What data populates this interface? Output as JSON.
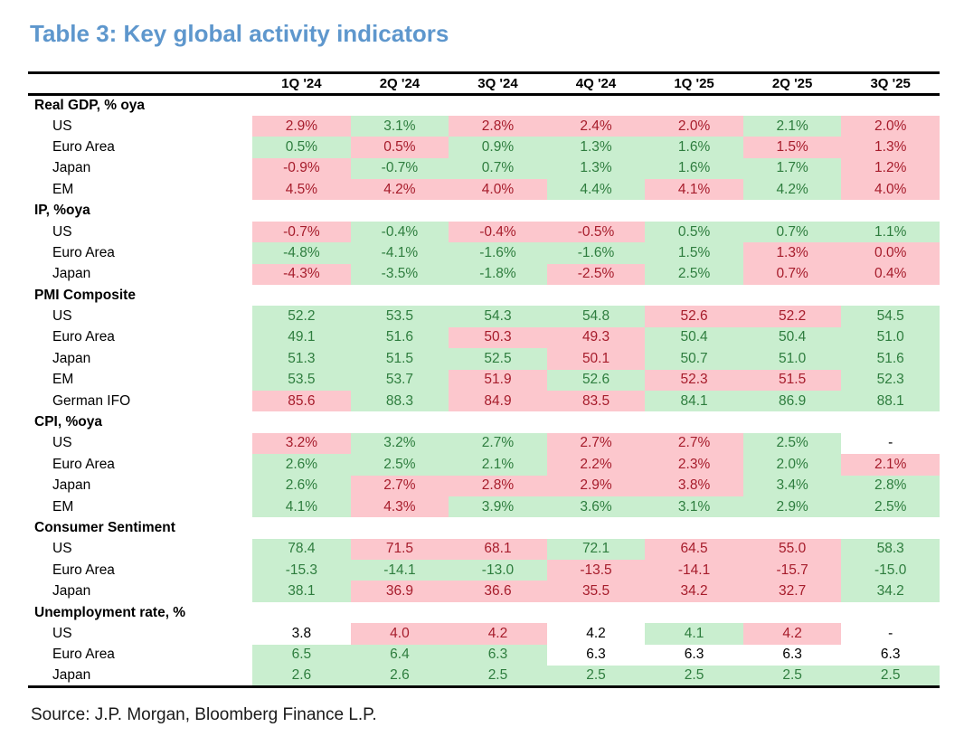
{
  "title": "Table 3: Key global activity indicators",
  "source": "Source: J.P. Morgan, Bloomberg Finance L.P.",
  "colors": {
    "title_blue": "#5E97CD",
    "positive_bg": "#C9EECF",
    "positive_text": "#2E7D3E",
    "negative_bg": "#FCC7CD",
    "negative_text": "#A61C2B"
  },
  "chart_data": {
    "type": "table",
    "title": "Table 3: Key global activity indicators",
    "columns": [
      "1Q '24",
      "2Q '24",
      "3Q '24",
      "4Q '24",
      "1Q '25",
      "2Q '25",
      "3Q '25"
    ],
    "legend": {
      "g": "green highlight",
      "p": "pink highlight",
      "w": "no highlight"
    },
    "sections": [
      {
        "label": "Real GDP, % oya",
        "rows": [
          {
            "label": "US",
            "cells": [
              [
                "2.9%",
                "p"
              ],
              [
                "3.1%",
                "g"
              ],
              [
                "2.8%",
                "p"
              ],
              [
                "2.4%",
                "p"
              ],
              [
                "2.0%",
                "p"
              ],
              [
                "2.1%",
                "g"
              ],
              [
                "2.0%",
                "p"
              ]
            ]
          },
          {
            "label": "Euro Area",
            "cells": [
              [
                "0.5%",
                "g"
              ],
              [
                "0.5%",
                "p"
              ],
              [
                "0.9%",
                "g"
              ],
              [
                "1.3%",
                "g"
              ],
              [
                "1.6%",
                "g"
              ],
              [
                "1.5%",
                "p"
              ],
              [
                "1.3%",
                "p"
              ]
            ]
          },
          {
            "label": "Japan",
            "cells": [
              [
                "-0.9%",
                "p"
              ],
              [
                "-0.7%",
                "g"
              ],
              [
                "0.7%",
                "g"
              ],
              [
                "1.3%",
                "g"
              ],
              [
                "1.6%",
                "g"
              ],
              [
                "1.7%",
                "g"
              ],
              [
                "1.2%",
                "p"
              ]
            ]
          },
          {
            "label": "EM",
            "cells": [
              [
                "4.5%",
                "p"
              ],
              [
                "4.2%",
                "p"
              ],
              [
                "4.0%",
                "p"
              ],
              [
                "4.4%",
                "g"
              ],
              [
                "4.1%",
                "p"
              ],
              [
                "4.2%",
                "g"
              ],
              [
                "4.0%",
                "p"
              ]
            ]
          }
        ]
      },
      {
        "label": "IP, %oya",
        "rows": [
          {
            "label": "US",
            "cells": [
              [
                "-0.7%",
                "p"
              ],
              [
                "-0.4%",
                "g"
              ],
              [
                "-0.4%",
                "p"
              ],
              [
                "-0.5%",
                "p"
              ],
              [
                "0.5%",
                "g"
              ],
              [
                "0.7%",
                "g"
              ],
              [
                "1.1%",
                "g"
              ]
            ]
          },
          {
            "label": "Euro Area",
            "cells": [
              [
                "-4.8%",
                "g"
              ],
              [
                "-4.1%",
                "g"
              ],
              [
                "-1.6%",
                "g"
              ],
              [
                "-1.6%",
                "g"
              ],
              [
                "1.5%",
                "g"
              ],
              [
                "1.3%",
                "p"
              ],
              [
                "0.0%",
                "p"
              ]
            ]
          },
          {
            "label": "Japan",
            "cells": [
              [
                "-4.3%",
                "p"
              ],
              [
                "-3.5%",
                "g"
              ],
              [
                "-1.8%",
                "g"
              ],
              [
                "-2.5%",
                "p"
              ],
              [
                "2.5%",
                "g"
              ],
              [
                "0.7%",
                "p"
              ],
              [
                "0.4%",
                "p"
              ]
            ]
          }
        ]
      },
      {
        "label": "PMI Composite",
        "rows": [
          {
            "label": "US",
            "cells": [
              [
                "52.2",
                "g"
              ],
              [
                "53.5",
                "g"
              ],
              [
                "54.3",
                "g"
              ],
              [
                "54.8",
                "g"
              ],
              [
                "52.6",
                "p"
              ],
              [
                "52.2",
                "p"
              ],
              [
                "54.5",
                "g"
              ]
            ]
          },
          {
            "label": "Euro Area",
            "cells": [
              [
                "49.1",
                "g"
              ],
              [
                "51.6",
                "g"
              ],
              [
                "50.3",
                "p"
              ],
              [
                "49.3",
                "p"
              ],
              [
                "50.4",
                "g"
              ],
              [
                "50.4",
                "g"
              ],
              [
                "51.0",
                "g"
              ]
            ]
          },
          {
            "label": "Japan",
            "cells": [
              [
                "51.3",
                "g"
              ],
              [
                "51.5",
                "g"
              ],
              [
                "52.5",
                "g"
              ],
              [
                "50.1",
                "p"
              ],
              [
                "50.7",
                "g"
              ],
              [
                "51.0",
                "g"
              ],
              [
                "51.6",
                "g"
              ]
            ]
          },
          {
            "label": "EM",
            "cells": [
              [
                "53.5",
                "g"
              ],
              [
                "53.7",
                "g"
              ],
              [
                "51.9",
                "p"
              ],
              [
                "52.6",
                "g"
              ],
              [
                "52.3",
                "p"
              ],
              [
                "51.5",
                "p"
              ],
              [
                "52.3",
                "g"
              ]
            ]
          },
          {
            "label": "German IFO",
            "cells": [
              [
                "85.6",
                "p"
              ],
              [
                "88.3",
                "g"
              ],
              [
                "84.9",
                "p"
              ],
              [
                "83.5",
                "p"
              ],
              [
                "84.1",
                "g"
              ],
              [
                "86.9",
                "g"
              ],
              [
                "88.1",
                "g"
              ]
            ]
          }
        ]
      },
      {
        "label": "CPI, %oya",
        "rows": [
          {
            "label": "US",
            "cells": [
              [
                "3.2%",
                "p"
              ],
              [
                "3.2%",
                "g"
              ],
              [
                "2.7%",
                "g"
              ],
              [
                "2.7%",
                "p"
              ],
              [
                "2.7%",
                "p"
              ],
              [
                "2.5%",
                "g"
              ],
              [
                "-",
                "w"
              ]
            ]
          },
          {
            "label": "Euro Area",
            "cells": [
              [
                "2.6%",
                "g"
              ],
              [
                "2.5%",
                "g"
              ],
              [
                "2.1%",
                "g"
              ],
              [
                "2.2%",
                "p"
              ],
              [
                "2.3%",
                "p"
              ],
              [
                "2.0%",
                "g"
              ],
              [
                "2.1%",
                "p"
              ]
            ]
          },
          {
            "label": "Japan",
            "cells": [
              [
                "2.6%",
                "g"
              ],
              [
                "2.7%",
                "p"
              ],
              [
                "2.8%",
                "p"
              ],
              [
                "2.9%",
                "p"
              ],
              [
                "3.8%",
                "p"
              ],
              [
                "3.4%",
                "g"
              ],
              [
                "2.8%",
                "g"
              ]
            ]
          },
          {
            "label": "EM",
            "cells": [
              [
                "4.1%",
                "g"
              ],
              [
                "4.3%",
                "p"
              ],
              [
                "3.9%",
                "g"
              ],
              [
                "3.6%",
                "g"
              ],
              [
                "3.1%",
                "g"
              ],
              [
                "2.9%",
                "g"
              ],
              [
                "2.5%",
                "g"
              ]
            ]
          }
        ]
      },
      {
        "label": "Consumer Sentiment",
        "rows": [
          {
            "label": "US",
            "cells": [
              [
                "78.4",
                "g"
              ],
              [
                "71.5",
                "p"
              ],
              [
                "68.1",
                "p"
              ],
              [
                "72.1",
                "g"
              ],
              [
                "64.5",
                "p"
              ],
              [
                "55.0",
                "p"
              ],
              [
                "58.3",
                "g"
              ]
            ]
          },
          {
            "label": "Euro Area",
            "cells": [
              [
                "-15.3",
                "g"
              ],
              [
                "-14.1",
                "g"
              ],
              [
                "-13.0",
                "g"
              ],
              [
                "-13.5",
                "p"
              ],
              [
                "-14.1",
                "p"
              ],
              [
                "-15.7",
                "p"
              ],
              [
                "-15.0",
                "g"
              ]
            ]
          },
          {
            "label": "Japan",
            "cells": [
              [
                "38.1",
                "g"
              ],
              [
                "36.9",
                "p"
              ],
              [
                "36.6",
                "p"
              ],
              [
                "35.5",
                "p"
              ],
              [
                "34.2",
                "p"
              ],
              [
                "32.7",
                "p"
              ],
              [
                "34.2",
                "g"
              ]
            ]
          }
        ]
      },
      {
        "label": "Unemployment rate, %",
        "rows": [
          {
            "label": "US",
            "cells": [
              [
                "3.8",
                "w"
              ],
              [
                "4.0",
                "p"
              ],
              [
                "4.2",
                "p"
              ],
              [
                "4.2",
                "w"
              ],
              [
                "4.1",
                "g"
              ],
              [
                "4.2",
                "p"
              ],
              [
                "-",
                "w"
              ]
            ]
          },
          {
            "label": "Euro Area",
            "cells": [
              [
                "6.5",
                "g"
              ],
              [
                "6.4",
                "g"
              ],
              [
                "6.3",
                "g"
              ],
              [
                "6.3",
                "w"
              ],
              [
                "6.3",
                "w"
              ],
              [
                "6.3",
                "w"
              ],
              [
                "6.3",
                "w"
              ]
            ]
          },
          {
            "label": "Japan",
            "cells": [
              [
                "2.6",
                "g"
              ],
              [
                "2.6",
                "g"
              ],
              [
                "2.5",
                "g"
              ],
              [
                "2.5",
                "g"
              ],
              [
                "2.5",
                "g"
              ],
              [
                "2.5",
                "g"
              ],
              [
                "2.5",
                "g"
              ]
            ]
          }
        ]
      }
    ]
  }
}
